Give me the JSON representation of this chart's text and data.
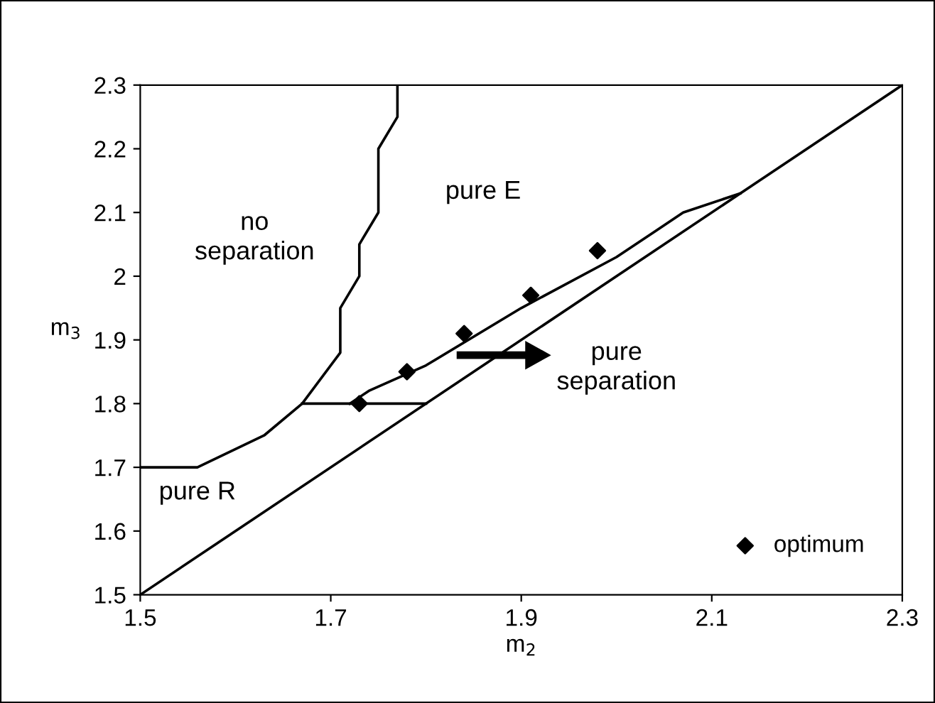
{
  "chart_data": {
    "type": "line",
    "xlabel": "m$_{2}$",
    "ylabel": "m$_{3}$",
    "xlim": [
      1.5,
      2.3
    ],
    "ylim": [
      1.5,
      2.3
    ],
    "xticks": [
      1.5,
      1.7,
      1.9,
      2.1,
      2.3
    ],
    "yticks": [
      1.5,
      1.6,
      1.7,
      1.8,
      1.9,
      2,
      2.1,
      2.2,
      2.3
    ],
    "grid": false,
    "legend": "bottom right",
    "series": [
      {
        "color": "#000000",
        "x": [
          1.5,
          1.56,
          1.63,
          1.67,
          1.71,
          1.71,
          1.73,
          1.73,
          1.75,
          1.75,
          1.77,
          1.77
        ],
        "values": [
          1.7,
          1.7,
          1.75,
          1.8,
          1.88,
          1.95,
          2.0,
          2.05,
          2.1,
          2.2,
          2.25,
          2.3
        ]
      },
      {
        "color": "#000000",
        "x": [
          1.67,
          1.8
        ],
        "values": [
          1.8,
          1.8
        ]
      },
      {
        "color": "#000000",
        "x": [
          1.72,
          1.74,
          1.8,
          1.9,
          2.0,
          2.04,
          2.07,
          2.13
        ],
        "values": [
          1.8,
          1.82,
          1.86,
          1.95,
          2.03,
          2.07,
          2.1,
          2.13
        ]
      },
      {
        "color": "#000000",
        "x": [
          1.5,
          2.3
        ],
        "values": [
          1.5,
          2.3
        ]
      },
      {
        "type": "scatter",
        "name": "optimum",
        "color": "#000000",
        "marker": "diamond",
        "x": [
          1.73,
          1.78,
          1.84,
          1.91,
          1.98
        ],
        "values": [
          1.8,
          1.85,
          1.91,
          1.97,
          2.04
        ]
      }
    ],
    "annotations": [
      "no\nseparation",
      "pure E",
      "pure\nseparation",
      "pure R"
    ]
  }
}
